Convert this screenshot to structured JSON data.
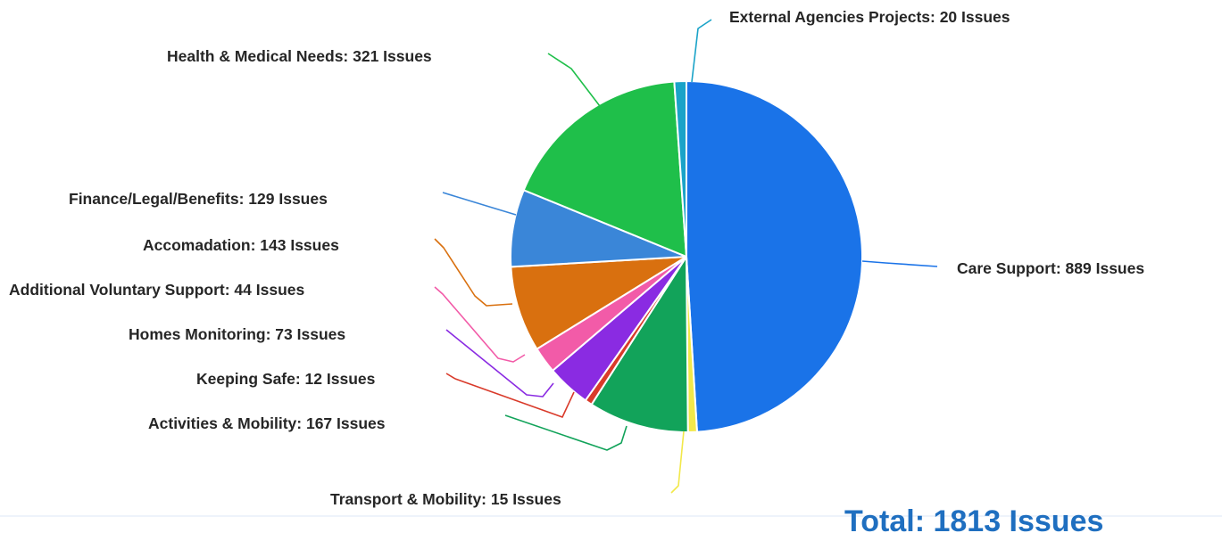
{
  "chart_data": {
    "type": "pie",
    "slices": [
      {
        "label": "Care Support: 889 Issues",
        "value": 889,
        "color": "#1a73e8"
      },
      {
        "label": "Transport & Mobility: 15 Issues",
        "value": 15,
        "color": "#f2e84a"
      },
      {
        "label": "Activities & Mobility: 167 Issues",
        "value": 167,
        "color": "#12a35a"
      },
      {
        "label": "Keeping Safe: 12 Issues",
        "value": 12,
        "color": "#d93a2a"
      },
      {
        "label": "Homes Monitoring: 73 Issues",
        "value": 73,
        "color": "#8a2be2"
      },
      {
        "label": "Additional Voluntary Support: 44 Issues",
        "value": 44,
        "color": "#f25ba8"
      },
      {
        "label": "Accomadation: 143 Issues",
        "value": 143,
        "color": "#d9700f"
      },
      {
        "label": "Finance/Legal/Benefits: 129 Issues",
        "value": 129,
        "color": "#3a86d8"
      },
      {
        "label": "Health & Medical Needs: 321 Issues",
        "value": 321,
        "color": "#1fbf4a"
      },
      {
        "label": "External Agencies Projects: 20 Issues",
        "value": 20,
        "color": "#1aa3c8"
      }
    ],
    "total_text": "Total: 1813 Issues",
    "legend": "none"
  }
}
